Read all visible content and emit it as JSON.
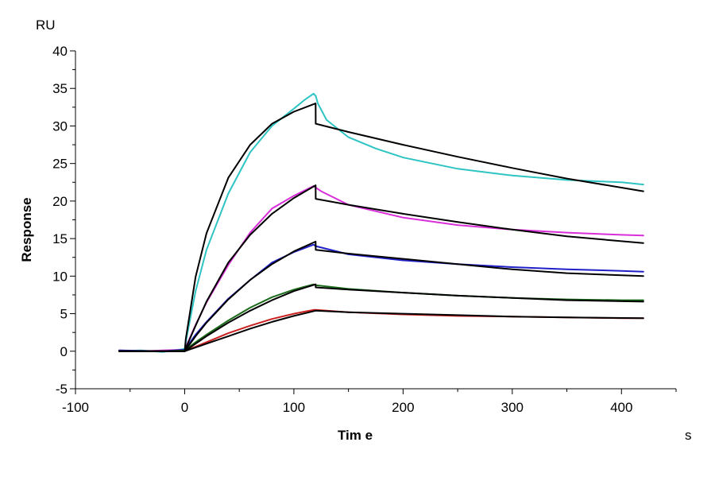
{
  "chart_data": {
    "type": "line",
    "title": "",
    "xlabel": "Tim e",
    "xunit": "s",
    "ylabel": "Response",
    "yunit": "RU",
    "xlim": [
      -100,
      450
    ],
    "ylim": [
      -5,
      40
    ],
    "x_ticks": [
      -100,
      0,
      100,
      200,
      300,
      400
    ],
    "y_ticks": [
      -5,
      0,
      5,
      10,
      15,
      20,
      25,
      30,
      35,
      40
    ],
    "grid": false,
    "legend": "none",
    "series": [
      {
        "color": "#2ec4c4",
        "role": "measured",
        "x": [
          -60,
          -40,
          -20,
          -5,
          0,
          2,
          10,
          20,
          40,
          60,
          80,
          100,
          110,
          118,
          120,
          122,
          130,
          150,
          175,
          200,
          250,
          300,
          350,
          400,
          420
        ],
        "y": [
          0.0,
          0.1,
          -0.1,
          0.2,
          0.3,
          2.0,
          8.0,
          13.5,
          21.0,
          26.5,
          30.0,
          32.3,
          33.5,
          34.3,
          34.0,
          33.0,
          30.8,
          28.5,
          27.0,
          25.8,
          24.3,
          23.4,
          22.8,
          22.5,
          22.2
        ]
      },
      {
        "color": "#000000",
        "role": "fit",
        "x": [
          -60,
          0,
          1,
          10,
          20,
          40,
          60,
          80,
          100,
          119.9,
          120,
          150,
          200,
          250,
          300,
          350,
          420
        ],
        "y": [
          0,
          0,
          1.6,
          9.9,
          15.7,
          23.1,
          27.5,
          30.3,
          31.9,
          33.0,
          30.3,
          29.2,
          27.5,
          25.9,
          24.4,
          23.0,
          21.3
        ]
      },
      {
        "color": "#d92ed9",
        "role": "measured",
        "x": [
          -60,
          -40,
          -20,
          0,
          10,
          20,
          40,
          60,
          80,
          100,
          118,
          120,
          125,
          150,
          200,
          250,
          300,
          350,
          400,
          420
        ],
        "y": [
          0.1,
          0.0,
          0.1,
          0.2,
          3.5,
          6.5,
          11.5,
          15.8,
          19.0,
          20.7,
          22.0,
          21.8,
          21.3,
          19.5,
          17.8,
          16.8,
          16.2,
          15.8,
          15.5,
          15.4
        ]
      },
      {
        "color": "#000000",
        "role": "fit",
        "x": [
          -60,
          0,
          1,
          10,
          20,
          40,
          60,
          80,
          100,
          119.9,
          120,
          150,
          200,
          250,
          300,
          350,
          420
        ],
        "y": [
          0,
          0,
          0.4,
          3.4,
          6.6,
          11.8,
          15.5,
          18.3,
          20.4,
          22.1,
          20.3,
          19.5,
          18.3,
          17.2,
          16.2,
          15.3,
          14.4
        ]
      },
      {
        "color": "#2020c8",
        "role": "measured",
        "x": [
          -60,
          -20,
          0,
          10,
          20,
          40,
          60,
          80,
          100,
          118,
          120,
          150,
          200,
          250,
          300,
          350,
          400,
          420
        ],
        "y": [
          0.1,
          0.0,
          0.2,
          2.2,
          3.9,
          7.0,
          9.5,
          11.8,
          13.2,
          14.2,
          14.0,
          12.9,
          12.1,
          11.6,
          11.2,
          10.9,
          10.7,
          10.6
        ]
      },
      {
        "color": "#000000",
        "role": "fit",
        "x": [
          -60,
          0,
          1,
          10,
          20,
          40,
          60,
          80,
          100,
          119.9,
          120,
          150,
          200,
          250,
          300,
          350,
          420
        ],
        "y": [
          0,
          0,
          0.2,
          2.0,
          3.8,
          6.9,
          9.5,
          11.6,
          13.3,
          14.6,
          13.5,
          13.0,
          12.3,
          11.6,
          10.9,
          10.4,
          10.0
        ]
      },
      {
        "color": "#1a6b1a",
        "role": "measured",
        "x": [
          -60,
          -20,
          0,
          10,
          20,
          40,
          60,
          80,
          100,
          118,
          120,
          150,
          200,
          250,
          300,
          350,
          400,
          420
        ],
        "y": [
          0.0,
          0.0,
          0.1,
          1.2,
          2.2,
          4.1,
          5.8,
          7.2,
          8.2,
          8.9,
          8.8,
          8.3,
          7.8,
          7.4,
          7.1,
          6.9,
          6.8,
          6.8
        ]
      },
      {
        "color": "#000000",
        "role": "fit",
        "x": [
          -60,
          0,
          1,
          10,
          20,
          40,
          60,
          80,
          100,
          119.9,
          120,
          150,
          200,
          250,
          300,
          350,
          420
        ],
        "y": [
          0,
          0,
          0.1,
          1.0,
          2.0,
          3.8,
          5.4,
          6.8,
          8.0,
          8.9,
          8.5,
          8.2,
          7.8,
          7.4,
          7.1,
          6.8,
          6.6
        ]
      },
      {
        "color": "#cc2020",
        "role": "measured",
        "x": [
          -60,
          -20,
          0,
          10,
          20,
          40,
          60,
          80,
          100,
          118,
          120,
          150,
          200,
          250,
          300,
          350,
          400,
          420
        ],
        "y": [
          0.0,
          0.0,
          0.0,
          0.6,
          1.2,
          2.4,
          3.4,
          4.3,
          5.0,
          5.5,
          5.5,
          5.2,
          4.9,
          4.7,
          4.6,
          4.5,
          4.4,
          4.4
        ]
      },
      {
        "color": "#000000",
        "role": "fit",
        "x": [
          -60,
          0,
          1,
          10,
          20,
          40,
          60,
          80,
          100,
          119.9,
          120,
          150,
          200,
          250,
          300,
          350,
          420
        ],
        "y": [
          0,
          0,
          0.05,
          0.5,
          1.0,
          2.0,
          3.0,
          3.9,
          4.7,
          5.4,
          5.4,
          5.2,
          5.0,
          4.8,
          4.6,
          4.5,
          4.4
        ]
      }
    ]
  }
}
